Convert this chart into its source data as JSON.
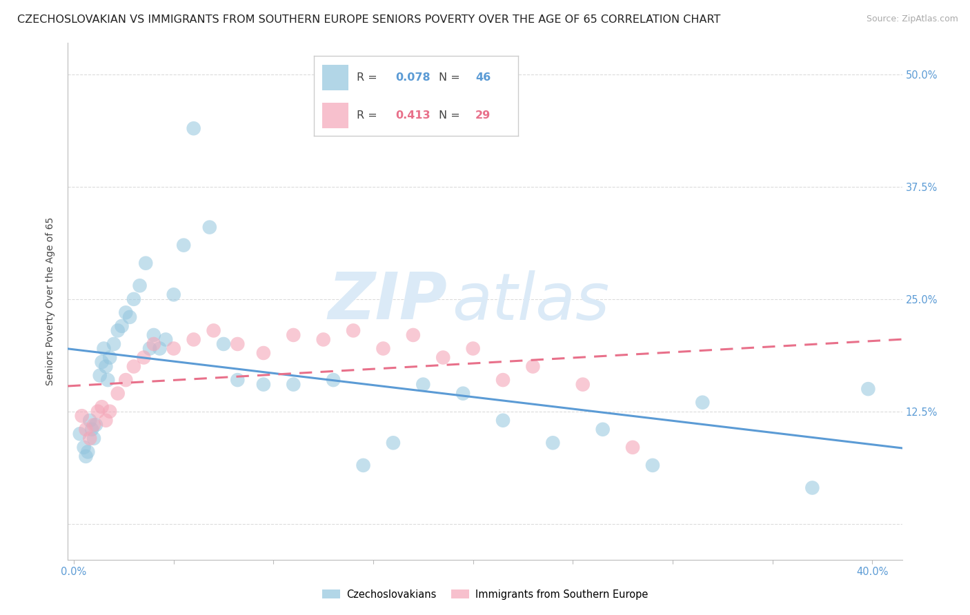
{
  "title": "CZECHOSLOVAKIAN VS IMMIGRANTS FROM SOUTHERN EUROPE SENIORS POVERTY OVER THE AGE OF 65 CORRELATION CHART",
  "source": "Source: ZipAtlas.com",
  "ylabel": "Seniors Poverty Over the Age of 65",
  "y_ticks": [
    0.0,
    0.125,
    0.25,
    0.375,
    0.5
  ],
  "y_tick_labels_right": [
    "",
    "12.5%",
    "25.0%",
    "37.5%",
    "50.0%"
  ],
  "xlim": [
    -0.003,
    0.415
  ],
  "ylim": [
    -0.04,
    0.535
  ],
  "legend_r1": "0.078",
  "legend_n1": "46",
  "legend_r2": "0.413",
  "legend_n2": "29",
  "color_blue": "#92c5de",
  "color_pink": "#f4a6b8",
  "color_blue_line": "#5b9bd5",
  "color_pink_line": "#e8708a",
  "color_blue_text": "#5b9bd5",
  "color_pink_text": "#e8708a",
  "watermark_zip": "ZIP",
  "watermark_atlas": "atlas",
  "watermark_color": "#dbeaf7",
  "label1": "Czechoslovakians",
  "label2": "Immigrants from Southern Europe",
  "blue_x": [
    0.003,
    0.005,
    0.006,
    0.007,
    0.008,
    0.009,
    0.01,
    0.011,
    0.013,
    0.014,
    0.015,
    0.016,
    0.017,
    0.018,
    0.02,
    0.022,
    0.024,
    0.026,
    0.028,
    0.03,
    0.033,
    0.036,
    0.038,
    0.04,
    0.043,
    0.046,
    0.05,
    0.055,
    0.06,
    0.068,
    0.075,
    0.082,
    0.095,
    0.11,
    0.13,
    0.145,
    0.16,
    0.175,
    0.195,
    0.215,
    0.24,
    0.265,
    0.29,
    0.315,
    0.37,
    0.398
  ],
  "blue_y": [
    0.1,
    0.085,
    0.075,
    0.08,
    0.115,
    0.105,
    0.095,
    0.11,
    0.165,
    0.18,
    0.195,
    0.175,
    0.16,
    0.185,
    0.2,
    0.215,
    0.22,
    0.235,
    0.23,
    0.25,
    0.265,
    0.29,
    0.195,
    0.21,
    0.195,
    0.205,
    0.255,
    0.31,
    0.44,
    0.33,
    0.2,
    0.16,
    0.155,
    0.155,
    0.16,
    0.065,
    0.09,
    0.155,
    0.145,
    0.115,
    0.09,
    0.105,
    0.065,
    0.135,
    0.04,
    0.15
  ],
  "pink_x": [
    0.004,
    0.006,
    0.008,
    0.01,
    0.012,
    0.014,
    0.016,
    0.018,
    0.022,
    0.026,
    0.03,
    0.035,
    0.04,
    0.05,
    0.06,
    0.07,
    0.082,
    0.095,
    0.11,
    0.125,
    0.14,
    0.155,
    0.17,
    0.185,
    0.2,
    0.215,
    0.23,
    0.255,
    0.28
  ],
  "pink_y": [
    0.12,
    0.105,
    0.095,
    0.11,
    0.125,
    0.13,
    0.115,
    0.125,
    0.145,
    0.16,
    0.175,
    0.185,
    0.2,
    0.195,
    0.205,
    0.215,
    0.2,
    0.19,
    0.21,
    0.205,
    0.215,
    0.195,
    0.21,
    0.185,
    0.195,
    0.16,
    0.175,
    0.155,
    0.085
  ],
  "grid_color": "#cccccc",
  "title_fontsize": 11.5,
  "axis_label_fontsize": 10,
  "tick_fontsize": 10.5,
  "watermark_fontsize": 68
}
